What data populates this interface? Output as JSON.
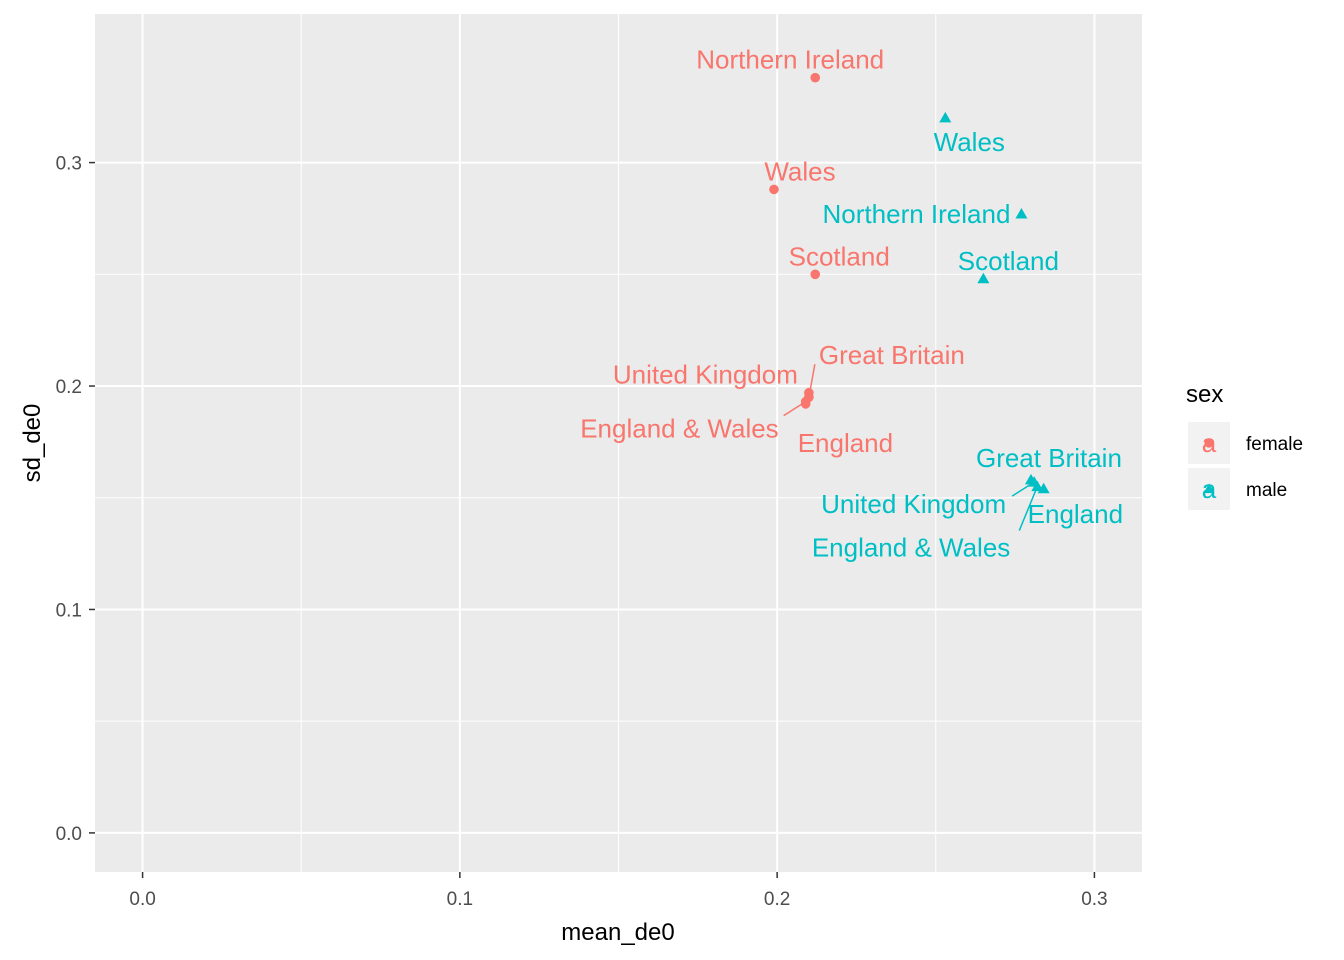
{
  "chart_data": {
    "type": "scatter",
    "title": "",
    "xlabel": "mean_de0",
    "ylabel": "sd_de0",
    "xlim": [
      -0.015,
      0.315
    ],
    "ylim": [
      -0.0175,
      0.3665
    ],
    "x_ticks": [
      0.0,
      0.1,
      0.2,
      0.3
    ],
    "x_tick_labels": [
      "0.0",
      "0.1",
      "0.2",
      "0.3"
    ],
    "y_ticks": [
      0.0,
      0.1,
      0.2,
      0.3
    ],
    "y_tick_labels": [
      "0.0",
      "0.1",
      "0.2",
      "0.3"
    ],
    "grid": true,
    "legend": {
      "title": "sex",
      "position": "right",
      "entries": [
        {
          "name": "female",
          "color": "#F8766D",
          "shape": "circle",
          "key_glyph": "a"
        },
        {
          "name": "male",
          "color": "#00BFC4",
          "shape": "triangle",
          "key_glyph": "a"
        }
      ]
    },
    "series": [
      {
        "name": "female",
        "color": "#F8766D",
        "shape": "circle",
        "points": [
          {
            "label": "Northern Ireland",
            "x": 0.212,
            "y": 0.338
          },
          {
            "label": "Wales",
            "x": 0.199,
            "y": 0.288
          },
          {
            "label": "Scotland",
            "x": 0.212,
            "y": 0.25
          },
          {
            "label": "Great Britain",
            "x": 0.21,
            "y": 0.195
          },
          {
            "label": "United Kingdom",
            "x": 0.21,
            "y": 0.197
          },
          {
            "label": "England & Wales",
            "x": 0.209,
            "y": 0.193
          },
          {
            "label": "England",
            "x": 0.209,
            "y": 0.192
          }
        ]
      },
      {
        "name": "male",
        "color": "#00BFC4",
        "shape": "triangle",
        "points": [
          {
            "label": "Wales",
            "x": 0.253,
            "y": 0.32
          },
          {
            "label": "Northern Ireland",
            "x": 0.277,
            "y": 0.277
          },
          {
            "label": "Scotland",
            "x": 0.265,
            "y": 0.248
          },
          {
            "label": "Great Britain",
            "x": 0.28,
            "y": 0.158
          },
          {
            "label": "United Kingdom",
            "x": 0.281,
            "y": 0.157
          },
          {
            "label": "England",
            "x": 0.284,
            "y": 0.154
          },
          {
            "label": "England & Wales",
            "x": 0.282,
            "y": 0.155
          }
        ]
      }
    ]
  }
}
